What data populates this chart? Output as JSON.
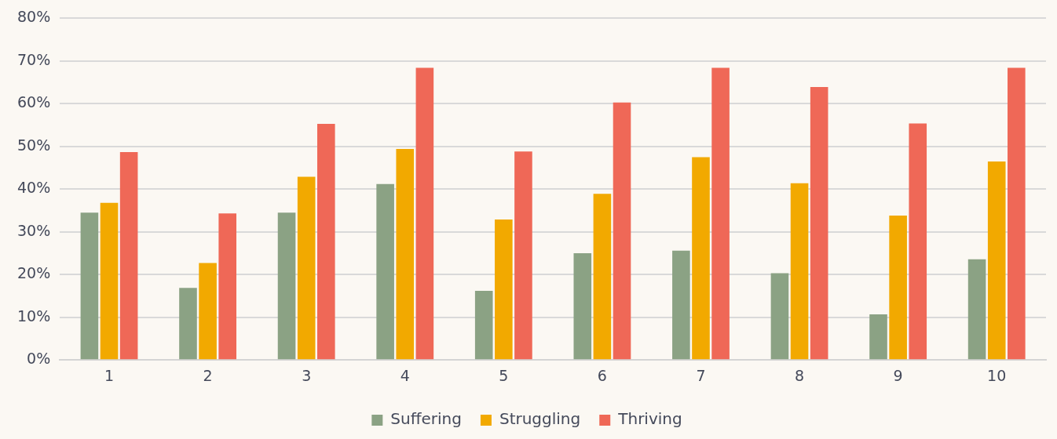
{
  "chart_data": {
    "type": "bar",
    "categories": [
      "1",
      "2",
      "3",
      "4",
      "5",
      "6",
      "7",
      "8",
      "9",
      "10"
    ],
    "series": [
      {
        "name": "Suffering",
        "color": "#8ba284",
        "values": [
          34.5,
          16.9,
          34.5,
          41.2,
          16.2,
          25.0,
          25.6,
          20.3,
          10.7,
          23.6
        ]
      },
      {
        "name": "Struggling",
        "color": "#f2a900",
        "values": [
          36.8,
          22.7,
          42.9,
          49.4,
          32.9,
          38.9,
          47.5,
          41.4,
          33.8,
          46.5
        ]
      },
      {
        "name": "Thriving",
        "color": "#ef6857",
        "values": [
          48.7,
          34.3,
          55.3,
          68.4,
          48.8,
          60.3,
          68.4,
          63.9,
          55.4,
          68.4
        ]
      }
    ],
    "ylim": [
      0,
      80
    ],
    "yticks": [
      {
        "value": 0,
        "label": "0%"
      },
      {
        "value": 10,
        "label": "10%"
      },
      {
        "value": 20,
        "label": "20%"
      },
      {
        "value": 30,
        "label": "30%"
      },
      {
        "value": 40,
        "label": "40%"
      },
      {
        "value": 50,
        "label": "50%"
      },
      {
        "value": 60,
        "label": "60%"
      },
      {
        "value": 70,
        "label": "70%"
      },
      {
        "value": 80,
        "label": "80%"
      }
    ],
    "grid": "y",
    "legend": "bottom"
  }
}
